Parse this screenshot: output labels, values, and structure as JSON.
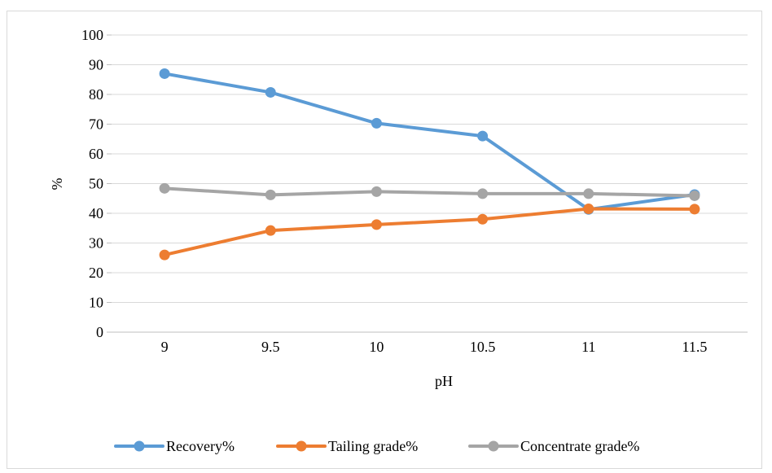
{
  "chart_data": {
    "type": "line",
    "title": "",
    "xlabel": "pH",
    "ylabel": "%",
    "x": [
      "9",
      "9.5",
      "10",
      "10.5",
      "11",
      "11.5"
    ],
    "ylim": [
      0,
      100
    ],
    "yticks": [
      "0",
      "10",
      "20",
      "30",
      "40",
      "50",
      "60",
      "70",
      "80",
      "90",
      "100"
    ],
    "grid": true,
    "legend_position": "bottom",
    "series": [
      {
        "name": "Recovery%",
        "color": "#5b9bd5",
        "values": [
          87,
          80.7,
          70.3,
          66,
          41.3,
          46.3
        ]
      },
      {
        "name": "Tailing grade%",
        "color": "#ed7d31",
        "values": [
          26,
          34.2,
          36.2,
          38,
          41.5,
          41.4
        ]
      },
      {
        "name": "Concentrate grade%",
        "color": "#a5a5a5",
        "values": [
          48.4,
          46.2,
          47.3,
          46.6,
          46.6,
          45.9
        ]
      }
    ]
  }
}
